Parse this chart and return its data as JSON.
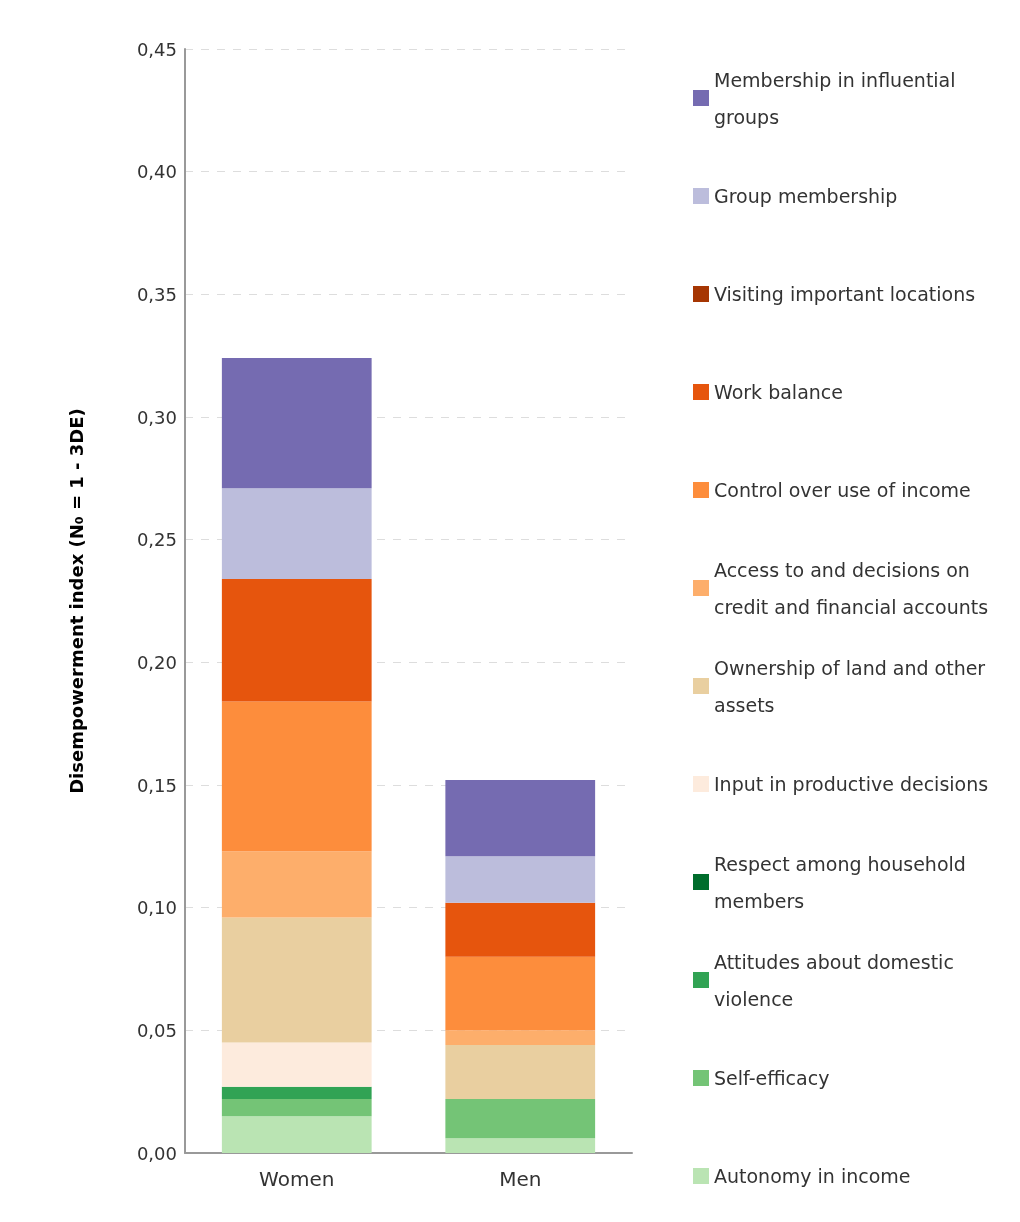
{
  "chart_data": {
    "type": "bar",
    "stacked": true,
    "ylabel": "Disempowerment index (N₀ = 1 - 3DE)",
    "categories": [
      "Women",
      "Men"
    ],
    "ylim": [
      0,
      0.45
    ],
    "yticks": [
      {
        "value": 0,
        "label": "0,00"
      },
      {
        "value": 0.05,
        "label": "0,05"
      },
      {
        "value": 0.1,
        "label": "0,10"
      },
      {
        "value": 0.15,
        "label": "0,15"
      },
      {
        "value": 0.2,
        "label": "0,20"
      },
      {
        "value": 0.25,
        "label": "0,25"
      },
      {
        "value": 0.3,
        "label": "0,30"
      },
      {
        "value": 0.35,
        "label": "0,35"
      },
      {
        "value": 0.4,
        "label": "0,40"
      },
      {
        "value": 0.45,
        "label": "0,45"
      }
    ],
    "grid": "y",
    "legend": "right",
    "series": [
      {
        "name": "Autonomy in income",
        "color": "#bae4b3",
        "values": [
          0.015,
          0.006
        ]
      },
      {
        "name": "Self-efficacy",
        "color": "#74c476",
        "values": [
          0.007,
          0.016
        ]
      },
      {
        "name": "Attitudes about domestic violence",
        "color": "#31a354",
        "values": [
          0.005,
          0
        ]
      },
      {
        "name": "Respect among household members",
        "color": "#006d2c",
        "values": [
          0,
          0
        ]
      },
      {
        "name": "Input in productive decisions",
        "color": "#fdebdd",
        "values": [
          0.018,
          0
        ]
      },
      {
        "name": "Ownership of land and other assets",
        "color": "#e9cfa0",
        "values": [
          0.051,
          0.022
        ]
      },
      {
        "name": "Access to and decisions on credit and financial accounts",
        "color": "#fdae6b",
        "values": [
          0.027,
          0.006
        ]
      },
      {
        "name": "Control over use of income",
        "color": "#fd8d3c",
        "values": [
          0.061,
          0.03
        ]
      },
      {
        "name": "Work balance",
        "color": "#e6550d",
        "values": [
          0.05,
          0.022
        ]
      },
      {
        "name": "Visiting important locations",
        "color": "#a63603",
        "values": [
          0,
          0
        ]
      },
      {
        "name": "Group membership",
        "color": "#bcbddc",
        "values": [
          0.037,
          0.019
        ]
      },
      {
        "name": "Membership in influential groups",
        "color": "#756bb1",
        "values": [
          0.053,
          0.031
        ]
      }
    ]
  }
}
